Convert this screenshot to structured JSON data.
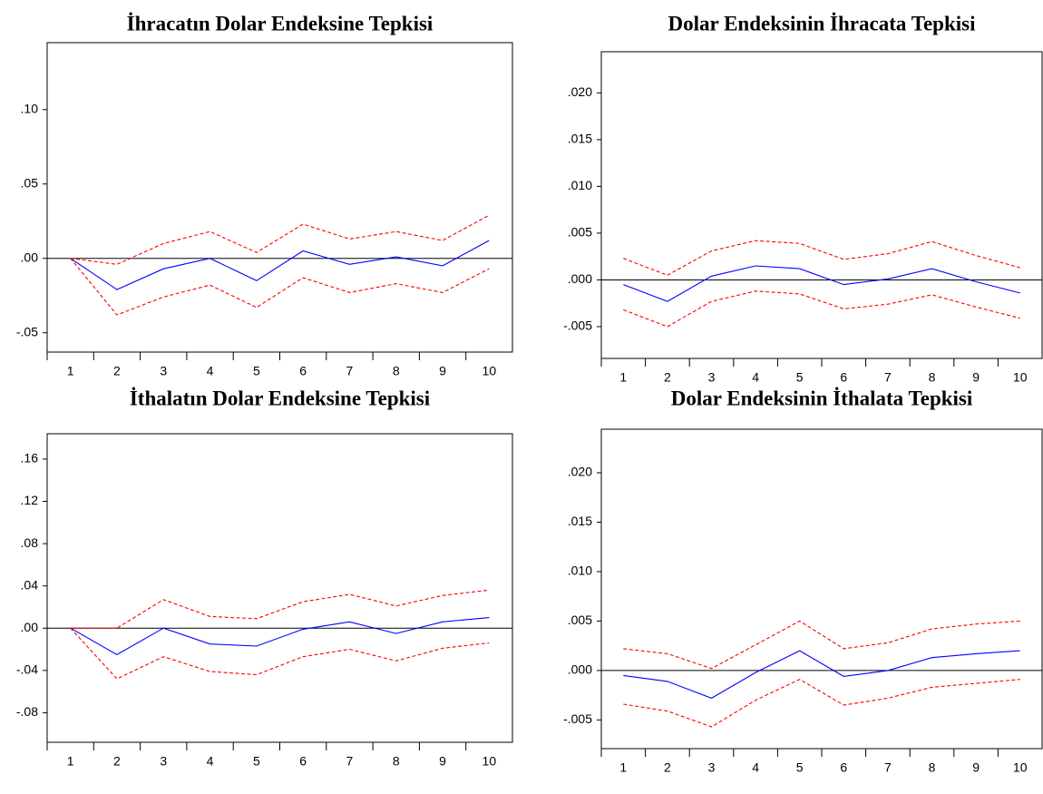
{
  "chart_data": [
    {
      "type": "line",
      "title": "İhracatın Dolar Endeksine Tepkisi",
      "categories": [
        "1",
        "2",
        "3",
        "4",
        "5",
        "6",
        "7",
        "8",
        "9",
        "10"
      ],
      "series": [
        {
          "color": "#0000ff",
          "dash": false,
          "values": [
            0.0,
            -0.021,
            -0.007,
            0.0,
            -0.015,
            0.005,
            -0.004,
            0.001,
            -0.005,
            0.012
          ]
        },
        {
          "color": "#ff0000",
          "dash": true,
          "values": [
            0.0,
            -0.004,
            0.01,
            0.018,
            0.004,
            0.023,
            0.013,
            0.018,
            0.012,
            0.029
          ]
        },
        {
          "color": "#ff0000",
          "dash": true,
          "values": [
            0.0,
            -0.038,
            -0.026,
            -0.018,
            -0.033,
            -0.013,
            -0.023,
            -0.017,
            -0.023,
            -0.007
          ]
        }
      ],
      "ylim": [
        -0.063,
        0.145
      ],
      "yticks": [
        {
          "value": 0.1,
          "label": ".10"
        },
        {
          "value": 0.05,
          "label": ".05"
        },
        {
          "value": 0,
          "label": ".00"
        },
        {
          "value": -0.05,
          "label": "-.05"
        }
      ]
    },
    {
      "type": "line",
      "title": "Dolar Endeksinin İhracata Tepkisi",
      "categories": [
        "1",
        "2",
        "3",
        "4",
        "5",
        "6",
        "7",
        "8",
        "9",
        "10"
      ],
      "series": [
        {
          "color": "#0000ff",
          "dash": false,
          "values": [
            -0.0005,
            -0.0023,
            0.0004,
            0.0015,
            0.0012,
            -0.0005,
            0.0001,
            0.0012,
            -0.0002,
            -0.0014
          ]
        },
        {
          "color": "#ff0000",
          "dash": true,
          "values": [
            0.0023,
            0.0005,
            0.0031,
            0.0042,
            0.0039,
            0.0022,
            0.0028,
            0.0041,
            0.0026,
            0.0013
          ]
        },
        {
          "color": "#ff0000",
          "dash": true,
          "values": [
            -0.0032,
            -0.005,
            -0.0023,
            -0.0012,
            -0.0015,
            -0.0031,
            -0.0026,
            -0.0016,
            -0.0029,
            -0.0041
          ]
        }
      ],
      "ylim": [
        -0.0084,
        0.0244
      ],
      "yticks": [
        {
          "value": 0.02,
          "label": ".020"
        },
        {
          "value": 0.015,
          "label": ".015"
        },
        {
          "value": 0.01,
          "label": ".010"
        },
        {
          "value": 0.005,
          "label": ".005"
        },
        {
          "value": 0,
          "label": ".000"
        },
        {
          "value": -0.005,
          "label": "-.005"
        }
      ]
    },
    {
      "type": "line",
      "title": "İthalatın Dolar Endeksine Tepkisi",
      "categories": [
        "1",
        "2",
        "3",
        "4",
        "5",
        "6",
        "7",
        "8",
        "9",
        "10"
      ],
      "series": [
        {
          "color": "#0000ff",
          "dash": false,
          "values": [
            0.0,
            -0.025,
            0.0,
            -0.015,
            -0.017,
            -0.001,
            0.006,
            -0.005,
            0.006,
            0.01
          ]
        },
        {
          "color": "#ff0000",
          "dash": true,
          "values": [
            0.0,
            0.0,
            0.027,
            0.011,
            0.009,
            0.025,
            0.032,
            0.021,
            0.031,
            0.036
          ]
        },
        {
          "color": "#ff0000",
          "dash": true,
          "values": [
            0.0,
            -0.048,
            -0.027,
            -0.041,
            -0.044,
            -0.027,
            -0.02,
            -0.031,
            -0.019,
            -0.014
          ]
        }
      ],
      "ylim": [
        -0.108,
        0.184
      ],
      "yticks": [
        {
          "value": 0.16,
          "label": ".16"
        },
        {
          "value": 0.12,
          "label": ".12"
        },
        {
          "value": 0.08,
          "label": ".08"
        },
        {
          "value": 0.04,
          "label": ".04"
        },
        {
          "value": 0,
          "label": ".00"
        },
        {
          "value": -0.04,
          "label": "-.04"
        },
        {
          "value": -0.08,
          "label": "-.08"
        }
      ]
    },
    {
      "type": "line",
      "title": "Dolar Endeksinin İthalata Tepkisi",
      "categories": [
        "1",
        "2",
        "3",
        "4",
        "5",
        "6",
        "7",
        "8",
        "9",
        "10"
      ],
      "series": [
        {
          "color": "#0000ff",
          "dash": false,
          "values": [
            -0.0005,
            -0.0011,
            -0.0028,
            -0.0002,
            0.002,
            -0.0006,
            0.0,
            0.0013,
            0.0017,
            0.002
          ]
        },
        {
          "color": "#ff0000",
          "dash": true,
          "values": [
            0.0022,
            0.0017,
            0.0002,
            0.0026,
            0.005,
            0.0022,
            0.0028,
            0.0042,
            0.0047,
            0.005
          ]
        },
        {
          "color": "#ff0000",
          "dash": true,
          "values": [
            -0.0034,
            -0.0041,
            -0.0057,
            -0.003,
            -0.0009,
            -0.0035,
            -0.0028,
            -0.0017,
            -0.0013,
            -0.0009
          ]
        }
      ],
      "ylim": [
        -0.0079,
        0.0244
      ],
      "yticks": [
        {
          "value": 0.02,
          "label": ".020"
        },
        {
          "value": 0.015,
          "label": ".015"
        },
        {
          "value": 0.01,
          "label": ".010"
        },
        {
          "value": 0.005,
          "label": ".005"
        },
        {
          "value": 0,
          "label": ".000"
        },
        {
          "value": -0.005,
          "label": "-.005"
        }
      ]
    }
  ]
}
